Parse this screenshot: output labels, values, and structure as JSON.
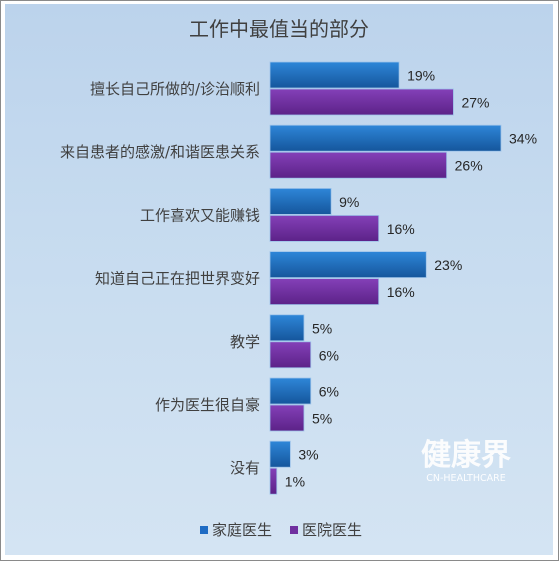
{
  "chart_data": {
    "type": "bar",
    "orientation": "horizontal",
    "title": "工作中最值当的部分",
    "categories": [
      "擅长自己所做的/诊治顺利",
      "来自患者的感激/和谐医患关系",
      "工作喜欢又能赚钱",
      "知道自己正在把世界变好",
      "教学",
      "作为医生很自豪",
      "没有"
    ],
    "series": [
      {
        "name": "家庭医生",
        "values": [
          19,
          34,
          9,
          23,
          5,
          6,
          3
        ],
        "labels": [
          "19%",
          "34%",
          "9%",
          "23%",
          "5%",
          "6%",
          "3%"
        ],
        "color": "#1f6cc4"
      },
      {
        "name": "医院医生",
        "values": [
          27,
          26,
          16,
          16,
          6,
          5,
          1
        ],
        "labels": [
          "27%",
          "26%",
          "16%",
          "16%",
          "6%",
          "5%",
          "1%"
        ],
        "color": "#7030a0"
      }
    ],
    "xlim": [
      0,
      34
    ],
    "legend_position": "bottom",
    "grid": false
  },
  "watermark": {
    "brand": "健康界",
    "sub": "CN-HEALTHCARE"
  }
}
